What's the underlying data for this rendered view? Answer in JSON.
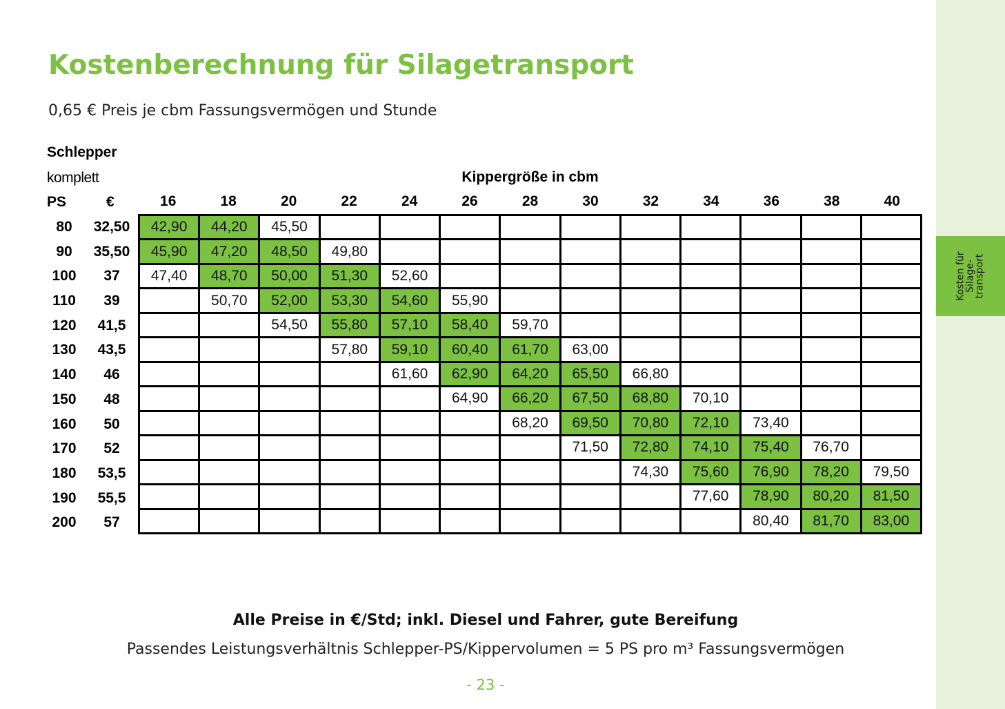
{
  "header": {
    "title": "Kostenberechnung für Silagetransport",
    "subtitle": "0,65 € Preis je cbm Fassungsvermögen und Stunde"
  },
  "side_tab": {
    "label": "Kosten für\nSilage-\ntransport"
  },
  "table": {
    "row_group_label_1": "Schlepper",
    "row_group_label_2": "komplett",
    "col_label_ps": "PS",
    "col_label_eur": "€",
    "column_group_label": "Kippergröße in cbm",
    "columns": [
      "16",
      "18",
      "20",
      "22",
      "24",
      "26",
      "28",
      "30",
      "32",
      "34",
      "36",
      "38",
      "40"
    ],
    "rows": [
      {
        "ps": "80",
        "eur": "32,50",
        "start": 0,
        "values": [
          "42,90",
          "44,20",
          "45,50"
        ],
        "green": [
          0,
          1
        ]
      },
      {
        "ps": "90",
        "eur": "35,50",
        "start": 0,
        "values": [
          "45,90",
          "47,20",
          "48,50",
          "49,80"
        ],
        "green": [
          0,
          1,
          2
        ]
      },
      {
        "ps": "100",
        "eur": "37",
        "start": 0,
        "values": [
          "47,40",
          "48,70",
          "50,00",
          "51,30",
          "52,60"
        ],
        "green": [
          1,
          2,
          3
        ]
      },
      {
        "ps": "110",
        "eur": "39",
        "start": 1,
        "values": [
          "50,70",
          "52,00",
          "53,30",
          "54,60",
          "55,90"
        ],
        "green": [
          2,
          3,
          4
        ]
      },
      {
        "ps": "120",
        "eur": "41,5",
        "start": 2,
        "values": [
          "54,50",
          "55,80",
          "57,10",
          "58,40",
          "59,70"
        ],
        "green": [
          3,
          4,
          5
        ]
      },
      {
        "ps": "130",
        "eur": "43,5",
        "start": 3,
        "values": [
          "57,80",
          "59,10",
          "60,40",
          "61,70",
          "63,00"
        ],
        "green": [
          4,
          5,
          6
        ]
      },
      {
        "ps": "140",
        "eur": "46",
        "start": 4,
        "values": [
          "61,60",
          "62,90",
          "64,20",
          "65,50",
          "66,80"
        ],
        "green": [
          5,
          6,
          7
        ]
      },
      {
        "ps": "150",
        "eur": "48",
        "start": 5,
        "values": [
          "64,90",
          "66,20",
          "67,50",
          "68,80",
          "70,10"
        ],
        "green": [
          6,
          7,
          8
        ]
      },
      {
        "ps": "160",
        "eur": "50",
        "start": 6,
        "values": [
          "68,20",
          "69,50",
          "70,80",
          "72,10",
          "73,40"
        ],
        "green": [
          7,
          8,
          9
        ]
      },
      {
        "ps": "170",
        "eur": "52",
        "start": 7,
        "values": [
          "71,50",
          "72,80",
          "74,10",
          "75,40",
          "76,70"
        ],
        "green": [
          8,
          9,
          10
        ]
      },
      {
        "ps": "180",
        "eur": "53,5",
        "start": 8,
        "values": [
          "74,30",
          "75,60",
          "76,90",
          "78,20",
          "79,50"
        ],
        "green": [
          9,
          10,
          11
        ]
      },
      {
        "ps": "190",
        "eur": "55,5",
        "start": 9,
        "values": [
          "77,60",
          "78,90",
          "80,20",
          "81,50"
        ],
        "green": [
          10,
          11,
          12
        ]
      },
      {
        "ps": "200",
        "eur": "57",
        "start": 10,
        "values": [
          "80,40",
          "81,70",
          "83,00"
        ],
        "green": [
          11,
          12
        ]
      }
    ],
    "colors": {
      "highlight": "#7cc142",
      "grid": "#000000"
    }
  },
  "footer": {
    "bold_note": "Alle Preise in €/Std; inkl. Diesel und Fahrer, gute Bereifung",
    "note": "Passendes Leistungsverhältnis Schlepper-PS/Kippervolumen = 5 PS pro m³ Fassungsvermögen",
    "page_number": "- 23 -"
  }
}
